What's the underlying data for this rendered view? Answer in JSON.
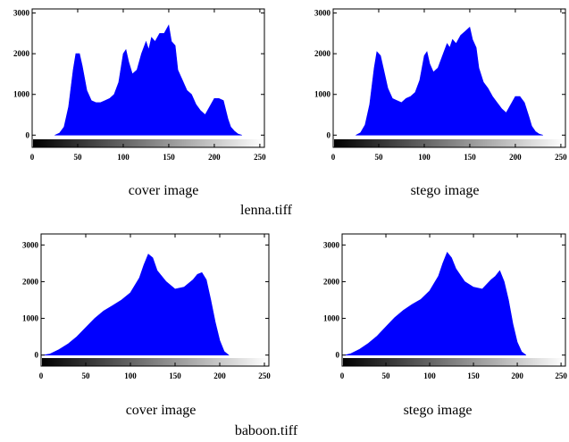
{
  "figure_captions": [
    "lenna.tiff",
    "baboon.tiff"
  ],
  "colors": {
    "histogram_fill": "#0000ff",
    "axis": "#000000",
    "background": "#ffffff"
  },
  "chart_data": [
    {
      "type": "area",
      "caption": "cover image",
      "figure": "lenna.tiff",
      "xlim": [
        0,
        255
      ],
      "ylim": [
        -300,
        3100
      ],
      "xticks": [
        0,
        50,
        100,
        150,
        200,
        250
      ],
      "yticks": [
        0,
        1000,
        2000,
        3000
      ],
      "colorbar": "grayscale",
      "grid": false,
      "x": [
        25,
        30,
        35,
        40,
        45,
        48,
        52,
        55,
        60,
        65,
        70,
        75,
        80,
        85,
        90,
        95,
        100,
        103,
        106,
        110,
        115,
        120,
        125,
        128,
        131,
        135,
        140,
        145,
        150,
        153,
        157,
        160,
        165,
        170,
        175,
        180,
        185,
        190,
        195,
        200,
        205,
        210,
        215,
        218,
        222,
        226,
        230
      ],
      "y": [
        0,
        50,
        200,
        700,
        1600,
        2000,
        2000,
        1700,
        1100,
        850,
        800,
        800,
        850,
        900,
        1000,
        1300,
        2000,
        2100,
        1800,
        1500,
        1600,
        2000,
        2300,
        2100,
        2400,
        2300,
        2500,
        2500,
        2700,
        2300,
        2200,
        1600,
        1350,
        1100,
        1000,
        750,
        600,
        500,
        700,
        900,
        900,
        850,
        400,
        200,
        100,
        30,
        0
      ]
    },
    {
      "type": "area",
      "caption": "stego image",
      "figure": "lenna.tiff",
      "xlim": [
        0,
        255
      ],
      "ylim": [
        -300,
        3100
      ],
      "xticks": [
        0,
        50,
        100,
        150,
        200,
        250
      ],
      "yticks": [
        0,
        1000,
        2000,
        3000
      ],
      "colorbar": "grayscale",
      "grid": false,
      "x": [
        25,
        30,
        35,
        40,
        45,
        48,
        52,
        55,
        60,
        65,
        70,
        75,
        80,
        85,
        90,
        95,
        100,
        103,
        106,
        110,
        115,
        120,
        125,
        128,
        131,
        135,
        140,
        145,
        150,
        153,
        157,
        160,
        165,
        170,
        175,
        180,
        185,
        190,
        195,
        200,
        205,
        210,
        215,
        218,
        222,
        226,
        230
      ],
      "y": [
        0,
        60,
        250,
        750,
        1650,
        2050,
        1950,
        1650,
        1150,
        900,
        850,
        800,
        900,
        950,
        1050,
        1350,
        1950,
        2050,
        1750,
        1550,
        1650,
        1950,
        2250,
        2150,
        2350,
        2250,
        2450,
        2550,
        2650,
        2350,
        2150,
        1650,
        1300,
        1150,
        950,
        800,
        650,
        550,
        750,
        950,
        950,
        800,
        450,
        220,
        90,
        30,
        0
      ]
    },
    {
      "type": "area",
      "caption": "cover image",
      "figure": "baboon.tiff",
      "xlim": [
        0,
        255
      ],
      "ylim": [
        -300,
        3300
      ],
      "xticks": [
        0,
        50,
        100,
        150,
        200,
        250
      ],
      "yticks": [
        0,
        1000,
        2000,
        3000
      ],
      "colorbar": "grayscale",
      "grid": false,
      "x": [
        0,
        5,
        10,
        20,
        30,
        40,
        50,
        60,
        70,
        80,
        90,
        100,
        110,
        115,
        120,
        125,
        130,
        140,
        150,
        160,
        170,
        175,
        180,
        185,
        190,
        195,
        200,
        205,
        210
      ],
      "y": [
        0,
        10,
        30,
        150,
        300,
        500,
        750,
        1000,
        1200,
        1350,
        1500,
        1700,
        2100,
        2450,
        2750,
        2650,
        2300,
        2000,
        1800,
        1850,
        2050,
        2200,
        2250,
        2050,
        1500,
        900,
        400,
        100,
        0
      ]
    },
    {
      "type": "area",
      "caption": "stego image",
      "figure": "baboon.tiff",
      "xlim": [
        0,
        255
      ],
      "ylim": [
        -300,
        3300
      ],
      "xticks": [
        0,
        50,
        100,
        150,
        200,
        250
      ],
      "yticks": [
        0,
        1000,
        2000,
        3000
      ],
      "colorbar": "grayscale",
      "grid": false,
      "x": [
        0,
        5,
        10,
        20,
        30,
        40,
        50,
        60,
        70,
        80,
        90,
        100,
        110,
        115,
        120,
        125,
        130,
        140,
        150,
        160,
        170,
        175,
        180,
        185,
        190,
        195,
        200,
        205,
        210
      ],
      "y": [
        0,
        10,
        40,
        160,
        320,
        520,
        770,
        1020,
        1220,
        1380,
        1520,
        1750,
        2150,
        2500,
        2800,
        2650,
        2350,
        2000,
        1850,
        1800,
        2050,
        2150,
        2300,
        2000,
        1500,
        850,
        350,
        90,
        0
      ]
    }
  ]
}
